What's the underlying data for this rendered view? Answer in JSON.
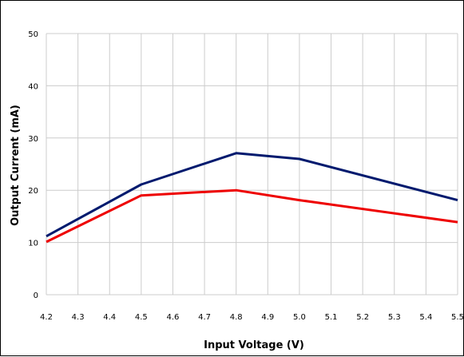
{
  "chart_data": {
    "type": "line",
    "title": "",
    "xlabel": "Input Voltage (V)",
    "ylabel": "Output Current (mA)",
    "x_ticks": [
      "4.2",
      "4.3",
      "4.4",
      "4.5",
      "4.6",
      "4.7",
      "4.8",
      "4.9",
      "5.0",
      "5.1",
      "5.2",
      "5.3",
      "5.4",
      "5.5"
    ],
    "y_ticks": [
      0,
      10,
      20,
      30,
      40,
      50
    ],
    "xlim": [
      4.2,
      5.5
    ],
    "ylim": [
      0,
      50
    ],
    "grid": true,
    "legend": false,
    "series": [
      {
        "color": "#001a6e",
        "x": [
          4.2,
          4.5,
          4.8,
          5.0,
          5.5
        ],
        "y": [
          11.2,
          21.1,
          27.1,
          26.0,
          18.1
        ]
      },
      {
        "color": "#ee0000",
        "x": [
          4.2,
          4.5,
          4.8,
          5.0,
          5.5
        ],
        "y": [
          10.1,
          19.0,
          20.0,
          18.1,
          13.9
        ]
      }
    ]
  }
}
